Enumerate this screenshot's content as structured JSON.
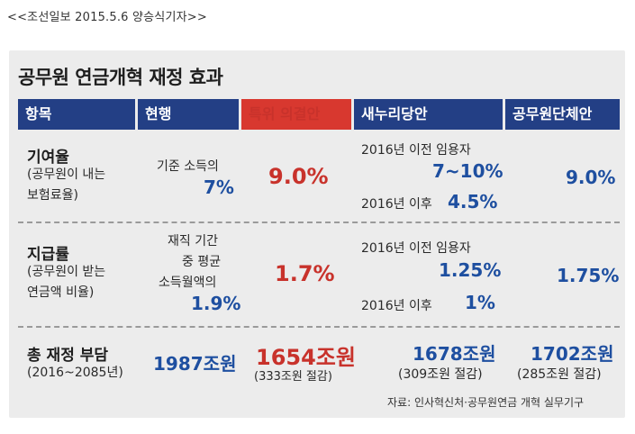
{
  "caption": "<<조선일보 2015.5.6 양승식기자>>",
  "title": "공무원 연금개혁 재정 효과",
  "headers": [
    "항목",
    "현행",
    "특위 의결안",
    "새누리당안",
    "공무원단체안"
  ],
  "rows": {
    "r1": {
      "label": "기여율",
      "desc1": "(공무원이 내는",
      "desc2": "보험료율)",
      "current_text": "기준 소득의",
      "current_value": "7%",
      "committee": "9.0%",
      "saenuri_line1": "2016년 이전 임용자",
      "saenuri_value1": "7~10%",
      "saenuri_line2": "2016년 이후",
      "saenuri_value2": "4.5%",
      "union": "9.0%"
    },
    "r2": {
      "label": "지급률",
      "desc1": "(공무원이 받는",
      "desc2": "연금액 비율)",
      "current_text1": "재직 기간",
      "current_text2": "중 평균",
      "current_text3": "소득월액의",
      "current_value": "1.9%",
      "committee": "1.7%",
      "saenuri_line1": "2016년 이전 임용자",
      "saenuri_value1": "1.25%",
      "saenuri_line2": "2016년 이후",
      "saenuri_value2": "1%",
      "union": "1.75%"
    },
    "r3": {
      "label": "총 재정 부담",
      "desc": "(2016~2085년)",
      "current": "1987조원",
      "committee": "1654조원",
      "committee_saving": "(333조원 절감)",
      "saenuri": "1678조원",
      "saenuri_saving": "(309조원 절감)",
      "union": "1702조원",
      "union_saving": "(285조원 절감)"
    }
  },
  "source": "자료: 인사혁신처·공무원연금 개혁 실무기구",
  "colors": {
    "header_blue": "#233f85",
    "header_red": "#d8382f",
    "value_blue": "#1e4fa0",
    "value_red": "#c8322b"
  }
}
